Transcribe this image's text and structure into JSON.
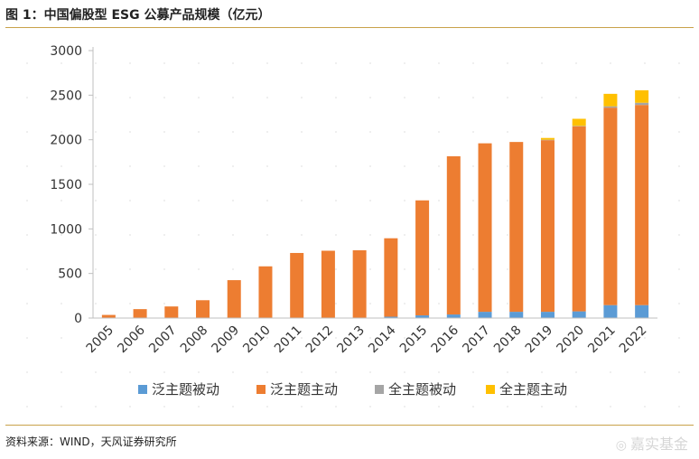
{
  "header": {
    "title": "图 1：中国偏股型 ESG 公募产品规模（亿元）"
  },
  "footer": {
    "source": "资料来源：WIND，天风证券研究所"
  },
  "watermark": {
    "text": "嘉实基金"
  },
  "chart_data": {
    "type": "bar",
    "stacked": true,
    "title": "图 1：中国偏股型 ESG 公募产品规模（亿元）",
    "xlabel": "",
    "ylabel": "",
    "ylim": [
      0,
      3000
    ],
    "yticks": [
      0,
      500,
      1000,
      1500,
      2000,
      2500,
      3000
    ],
    "grid": false,
    "legend_position": "bottom",
    "categories": [
      "2005",
      "2006",
      "2007",
      "2008",
      "2009",
      "2010",
      "2011",
      "2012",
      "2013",
      "2014",
      "2015",
      "2016",
      "2017",
      "2018",
      "2019",
      "2020",
      "2021",
      "2022"
    ],
    "series": [
      {
        "name": "泛主题被动",
        "color": "#5b9bd5",
        "values": [
          0,
          0,
          0,
          0,
          0,
          0,
          0,
          0,
          0,
          15,
          30,
          40,
          70,
          70,
          70,
          75,
          145,
          145
        ]
      },
      {
        "name": "泛主题主动",
        "color": "#ed7d31",
        "values": [
          35,
          100,
          130,
          200,
          425,
          580,
          730,
          755,
          760,
          880,
          1290,
          1775,
          1890,
          1905,
          1925,
          2075,
          2215,
          2245
        ]
      },
      {
        "name": "全主题被动",
        "color": "#a5a5a5",
        "values": [
          0,
          0,
          0,
          0,
          0,
          0,
          0,
          0,
          0,
          0,
          0,
          0,
          0,
          0,
          5,
          5,
          15,
          25
        ]
      },
      {
        "name": "全主题主动",
        "color": "#ffc000",
        "values": [
          0,
          0,
          0,
          0,
          0,
          0,
          0,
          0,
          0,
          0,
          0,
          0,
          0,
          0,
          20,
          80,
          140,
          140
        ]
      }
    ]
  }
}
